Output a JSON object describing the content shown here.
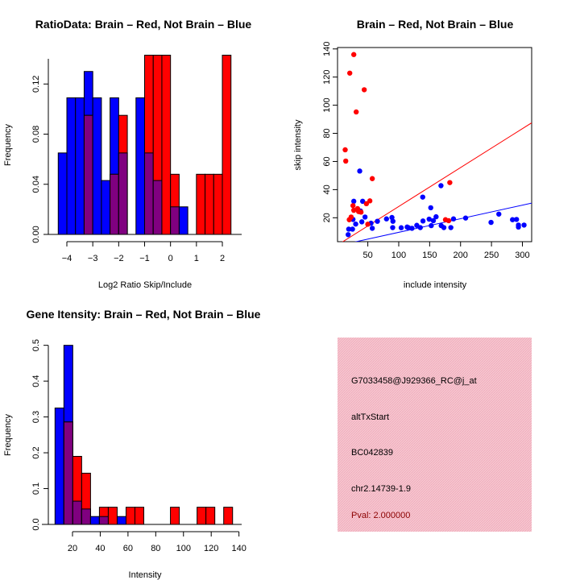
{
  "chart_data": [
    {
      "type": "bar",
      "title": "RatioData: Brain – Red, Not Brain – Blue",
      "xlabel": "Log2 Ratio Skip/Include",
      "ylabel": "Frequency",
      "break_start": -4.333,
      "bin_width": 0.3333,
      "xticks": [
        -4,
        -3,
        -2,
        -1,
        0,
        1,
        2
      ],
      "yticks": [
        "0.00",
        "0.04",
        "0.08",
        "0.12"
      ],
      "ylim": [
        0,
        0.143
      ],
      "series": [
        {
          "name": "Not Brain",
          "color": "#0000ff",
          "values": [
            0.065,
            0.109,
            0.109,
            0.13,
            0.109,
            0.043,
            0.109,
            0.065,
            0,
            0.109,
            0.065,
            0.043,
            0,
            0.022,
            0.022,
            0,
            0,
            0,
            0,
            0
          ]
        },
        {
          "name": "Brain",
          "color": "#ff0000",
          "values": [
            0,
            0,
            0,
            0.095,
            0,
            0,
            0.048,
            0.095,
            0,
            0,
            0.143,
            0.143,
            0.143,
            0.048,
            0,
            0,
            0.048,
            0.048,
            0.048,
            0.143
          ]
        }
      ],
      "overlap_color": "#800080"
    },
    {
      "type": "scatter",
      "title": "Brain – Red, Not Brain – Blue",
      "xlabel": "include intensity",
      "ylabel": "skip intensity",
      "xticks": [
        50,
        100,
        150,
        200,
        250,
        300
      ],
      "yticks": [
        20,
        40,
        60,
        80,
        100,
        120,
        140
      ],
      "xlim": [
        1,
        315
      ],
      "ylim": [
        3,
        141
      ],
      "series": [
        {
          "name": "Brain",
          "color": "#ff0000",
          "points": [
            [
              13.4,
              68.3
            ],
            [
              14.3,
              60.3
            ],
            [
              20.8,
              122.8
            ],
            [
              27.3,
              136
            ],
            [
              31.2,
              95.2
            ],
            [
              44.2,
              111
            ],
            [
              57.2,
              47.8
            ],
            [
              53.3,
              32
            ],
            [
              47.7,
              30
            ],
            [
              49.9,
              15.4
            ],
            [
              182.6,
              45
            ],
            [
              175.6,
              18.6
            ],
            [
              180.8,
              17.9
            ],
            [
              20,
              18.6
            ],
            [
              23,
              20.5
            ],
            [
              26,
              28.6
            ],
            [
              27.3,
              25.3
            ],
            [
              33.4,
              26.5
            ],
            [
              35.1,
              24.4
            ],
            [
              39,
              24
            ]
          ],
          "fit": {
            "slope": 0.2766,
            "intercept": 0.34
          }
        },
        {
          "name": "Not Brain",
          "color": "#0000ff",
          "points": [
            [
              18.2,
              8
            ],
            [
              19.1,
              11.9
            ],
            [
              25.2,
              11.9
            ],
            [
              26,
              18.8
            ],
            [
              27.3,
              31.7
            ],
            [
              30.4,
              15.5
            ],
            [
              36.9,
              53.2
            ],
            [
              38.2,
              24.8
            ],
            [
              40.3,
              17.1
            ],
            [
              41.6,
              31.7
            ],
            [
              45.5,
              20.5
            ],
            [
              55.1,
              16.1
            ],
            [
              57.2,
              12.5
            ],
            [
              65.5,
              17.5
            ],
            [
              80.2,
              19.2
            ],
            [
              89,
              20.2
            ],
            [
              90.6,
              17.5
            ],
            [
              90.2,
              13
            ],
            [
              104,
              12.9
            ],
            [
              113.6,
              13.4
            ],
            [
              115.8,
              12.9
            ],
            [
              121.4,
              12.5
            ],
            [
              129.2,
              14.6
            ],
            [
              134.9,
              13
            ],
            [
              139.2,
              17.7
            ],
            [
              138.8,
              34.7
            ],
            [
              149.2,
              19
            ],
            [
              151.8,
              27.1
            ],
            [
              152.6,
              14.4
            ],
            [
              156,
              17.9
            ],
            [
              160.4,
              20.7
            ],
            [
              168.3,
              42.8
            ],
            [
              168.7,
              14.4
            ],
            [
              173,
              13
            ],
            [
              184.3,
              13
            ],
            [
              188.6,
              19.2
            ],
            [
              208.2,
              19.8
            ],
            [
              249.3,
              16.7
            ],
            [
              261.9,
              22.6
            ],
            [
              284,
              18.6
            ],
            [
              290.5,
              18.8
            ],
            [
              293.6,
              14.8
            ],
            [
              293.6,
              13.4
            ],
            [
              302.7,
              14.8
            ]
          ],
          "fit": {
            "slope": 0.0965,
            "intercept": 0
          }
        }
      ]
    },
    {
      "type": "bar",
      "title": "Gene Itensity: Brain – Red, Not Brain – Blue",
      "xlabel": "Intensity",
      "ylabel": "Frequency",
      "break_start": 7.4,
      "bin_width": 6.4,
      "xticks": [
        20,
        40,
        60,
        80,
        100,
        120,
        140
      ],
      "yticks": [
        "0.0",
        "0.1",
        "0.2",
        "0.3",
        "0.4",
        "0.5"
      ],
      "ylim": [
        0,
        0.5
      ],
      "series": [
        {
          "name": "Not Brain",
          "color": "#0000ff",
          "values": [
            0.325,
            0.5,
            0.065,
            0.043,
            0.022,
            0.022,
            0,
            0.022,
            0,
            0,
            0,
            0,
            0,
            0,
            0,
            0,
            0,
            0,
            0,
            0
          ]
        },
        {
          "name": "Brain",
          "color": "#ff0000",
          "values": [
            0,
            0.286,
            0.19,
            0.143,
            0,
            0.048,
            0.048,
            0,
            0.048,
            0.048,
            0,
            0,
            0,
            0.048,
            0,
            0,
            0.048,
            0.048,
            0,
            0.048
          ]
        }
      ],
      "overlap_color": "#800080"
    }
  ],
  "info": {
    "lines": [
      "G7033458@J929366_RC@j_at",
      "altTxStart",
      "BC042839",
      "chr2.14739-1.9"
    ],
    "pval": "Pval: 2.000000",
    "bg": "#f6c6d0",
    "pval_color": "#8b0000"
  }
}
